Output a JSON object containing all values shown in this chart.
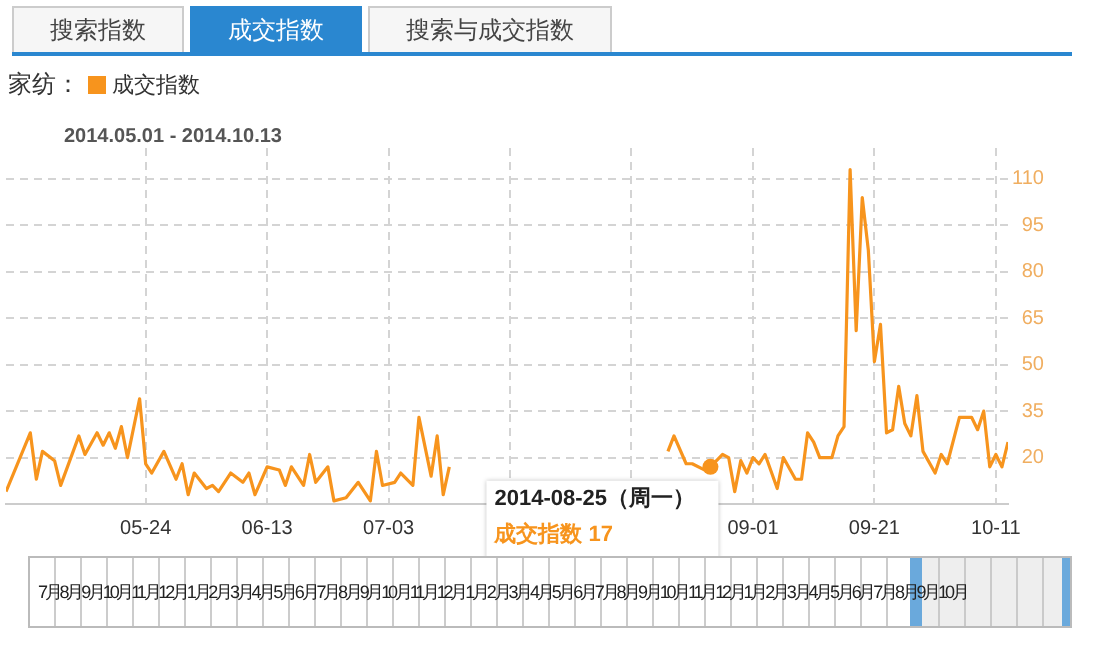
{
  "chart_data": {
    "type": "line",
    "title": "家纺：",
    "subtitle": "2014.05.01 - 2014.10.13",
    "annotations": [
      "搜索指数",
      "成交指数",
      "搜索与成交指数",
      "7月8月9月10月11月12月1月2月3月4月5月6月7月8月9月10月11月12月1月2月3月4月5月6月7月8月9月10月11月12月1月2月3月4月5月6月7月8月9月10月",
      {
        "text": "2014-08-25（周一）",
        "x": "2014-08-25",
        "y": 17
      },
      "成交指数 17"
    ],
    "x": [
      "2014-05-01",
      "2014-05-05",
      "2014-05-06",
      "2014-05-07",
      "2014-05-09",
      "2014-05-10",
      "2014-05-13",
      "2014-05-14",
      "2014-05-16",
      "2014-05-17",
      "2014-05-18",
      "2014-05-19",
      "2014-05-20",
      "2014-05-21",
      "2014-05-23",
      "2014-05-24",
      "2014-05-25",
      "2014-05-27",
      "2014-05-29",
      "2014-05-30",
      "2014-05-31",
      "2014-06-01",
      "2014-06-03",
      "2014-06-04",
      "2014-06-05",
      "2014-06-07",
      "2014-06-09",
      "2014-06-10",
      "2014-06-11",
      "2014-06-13",
      "2014-06-15",
      "2014-06-16",
      "2014-06-17",
      "2014-06-19",
      "2014-06-20",
      "2014-06-21",
      "2014-06-23",
      "2014-06-24",
      "2014-06-26",
      "2014-06-28",
      "2014-06-30",
      "2014-07-01",
      "2014-07-02",
      "2014-07-04",
      "2014-07-05",
      "2014-07-07",
      "2014-07-08",
      "2014-07-10",
      "2014-07-11",
      "2014-07-12",
      "2014-07-13",
      "2014-07-30",
      "2014-08-18",
      "2014-08-19",
      "2014-08-21",
      "2014-08-22",
      "2014-08-24",
      "2014-08-25",
      "2014-08-27",
      "2014-08-28",
      "2014-08-29",
      "2014-08-30",
      "2014-08-31",
      "2014-09-01",
      "2014-09-02",
      "2014-09-03",
      "2014-09-05",
      "2014-09-06",
      "2014-09-08",
      "2014-09-09",
      "2014-09-10",
      "2014-09-11",
      "2014-09-12",
      "2014-09-14",
      "2014-09-15",
      "2014-09-16",
      "2014-09-17",
      "2014-09-18",
      "2014-09-19",
      "2014-09-20",
      "2014-09-21",
      "2014-09-22",
      "2014-09-23",
      "2014-09-24",
      "2014-09-25",
      "2014-09-26",
      "2014-09-27",
      "2014-09-28",
      "2014-09-29",
      "2014-10-01",
      "2014-10-02",
      "2014-10-03",
      "2014-10-05",
      "2014-10-07",
      "2014-10-08",
      "2014-10-09",
      "2014-10-10",
      "2014-10-11",
      "2014-10-12",
      "2014-10-13"
    ],
    "series": [
      {
        "name": "成交指数",
        "color": "#f7941d",
        "values": [
          9,
          28,
          13,
          22,
          19,
          11,
          27,
          21,
          28,
          24,
          28,
          23,
          30,
          20,
          39,
          18,
          15,
          22,
          13,
          18,
          8,
          15,
          10,
          11,
          9,
          15,
          12,
          15,
          8,
          17,
          16,
          11,
          17,
          11,
          21,
          12,
          17,
          6,
          7,
          12,
          6,
          22,
          11,
          12,
          15,
          11,
          33,
          14,
          27,
          8,
          17,
          null,
          22,
          27,
          18,
          18,
          16,
          17,
          21,
          20,
          9,
          19,
          15,
          20,
          18,
          21,
          10,
          20,
          13,
          13,
          28,
          25,
          20,
          20,
          27,
          30,
          113,
          61,
          104,
          87,
          51,
          63,
          28,
          29,
          43,
          31,
          27,
          40,
          22,
          15,
          21,
          18,
          33,
          33,
          29,
          35,
          17,
          21,
          17,
          25
        ]
      }
    ],
    "xlim": [
      "2014-05-01",
      "2014-10-13"
    ],
    "xticks": [
      {
        "value": "2014-05-24",
        "label": "05-24"
      },
      {
        "value": "2014-06-13",
        "label": "06-13"
      },
      {
        "value": "2014-07-03",
        "label": "07-03"
      },
      {
        "value": "2014-07-23",
        "label": null
      },
      {
        "value": "2014-08-12",
        "label": null
      },
      {
        "value": "2014-09-01",
        "label": "09-01"
      },
      {
        "value": "2014-09-21",
        "label": "09-21"
      },
      {
        "value": "2014-10-11",
        "label": "10-11"
      }
    ],
    "ylim": [
      5,
      120
    ],
    "yticks": [
      20,
      35,
      50,
      65,
      80,
      95,
      110
    ],
    "grid": true,
    "legend": "top left",
    "marker": "none",
    "line_style": "solid"
  }
}
